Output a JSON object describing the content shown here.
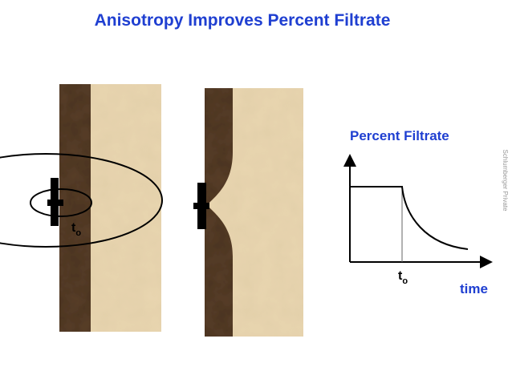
{
  "title": "Anisotropy Improves Percent Filtrate",
  "left_panel": {
    "time_label": {
      "main": "t",
      "sub": "o"
    }
  },
  "graph": {
    "y_label": "Percent Filtrate",
    "x_label": "time",
    "time_label": {
      "main": "t",
      "sub": "o"
    }
  },
  "footer": {
    "watermark": "Schlumberger Private"
  }
}
